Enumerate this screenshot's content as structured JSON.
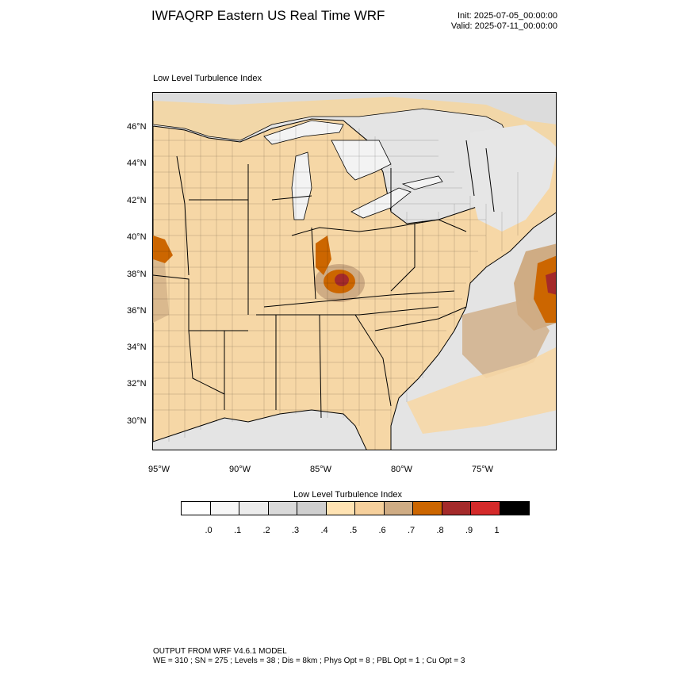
{
  "header": {
    "title": "IWFAQRP Eastern US Real Time WRF",
    "init": "Init: 2025-07-05_00:00:00",
    "valid": "Valid: 2025-07-11_00:00:00"
  },
  "map": {
    "field_title": "Low Level Turbulence Index",
    "lat_labels": [
      "46°N",
      "44°N",
      "42°N",
      "40°N",
      "38°N",
      "36°N",
      "34°N",
      "32°N",
      "30°N"
    ],
    "lon_labels": [
      "95°W",
      "90°W",
      "85°W",
      "80°W",
      "75°W"
    ]
  },
  "colorbar": {
    "title": "Low Level Turbulence Index",
    "colors": [
      "#ffffff",
      "#f7f7f7",
      "#ececec",
      "#d9d9d9",
      "#cfcfcf",
      "#ffe3b3",
      "#f6d09c",
      "#cfac84",
      "#cc6600",
      "#a42a2a",
      "#d42a2a",
      "#000000"
    ],
    "labels": [
      ".0",
      ".1",
      ".2",
      ".3",
      ".4",
      ".5",
      ".6",
      ".7",
      ".8",
      ".9",
      "1"
    ]
  },
  "footer": {
    "line1": "OUTPUT FROM WRF V4.6.1 MODEL",
    "line2": "WE = 310 ; SN = 275 ; Levels = 38 ; Dis = 8km ; Phys Opt = 8 ; PBL Opt = 1 ; Cu Opt = 3"
  }
}
